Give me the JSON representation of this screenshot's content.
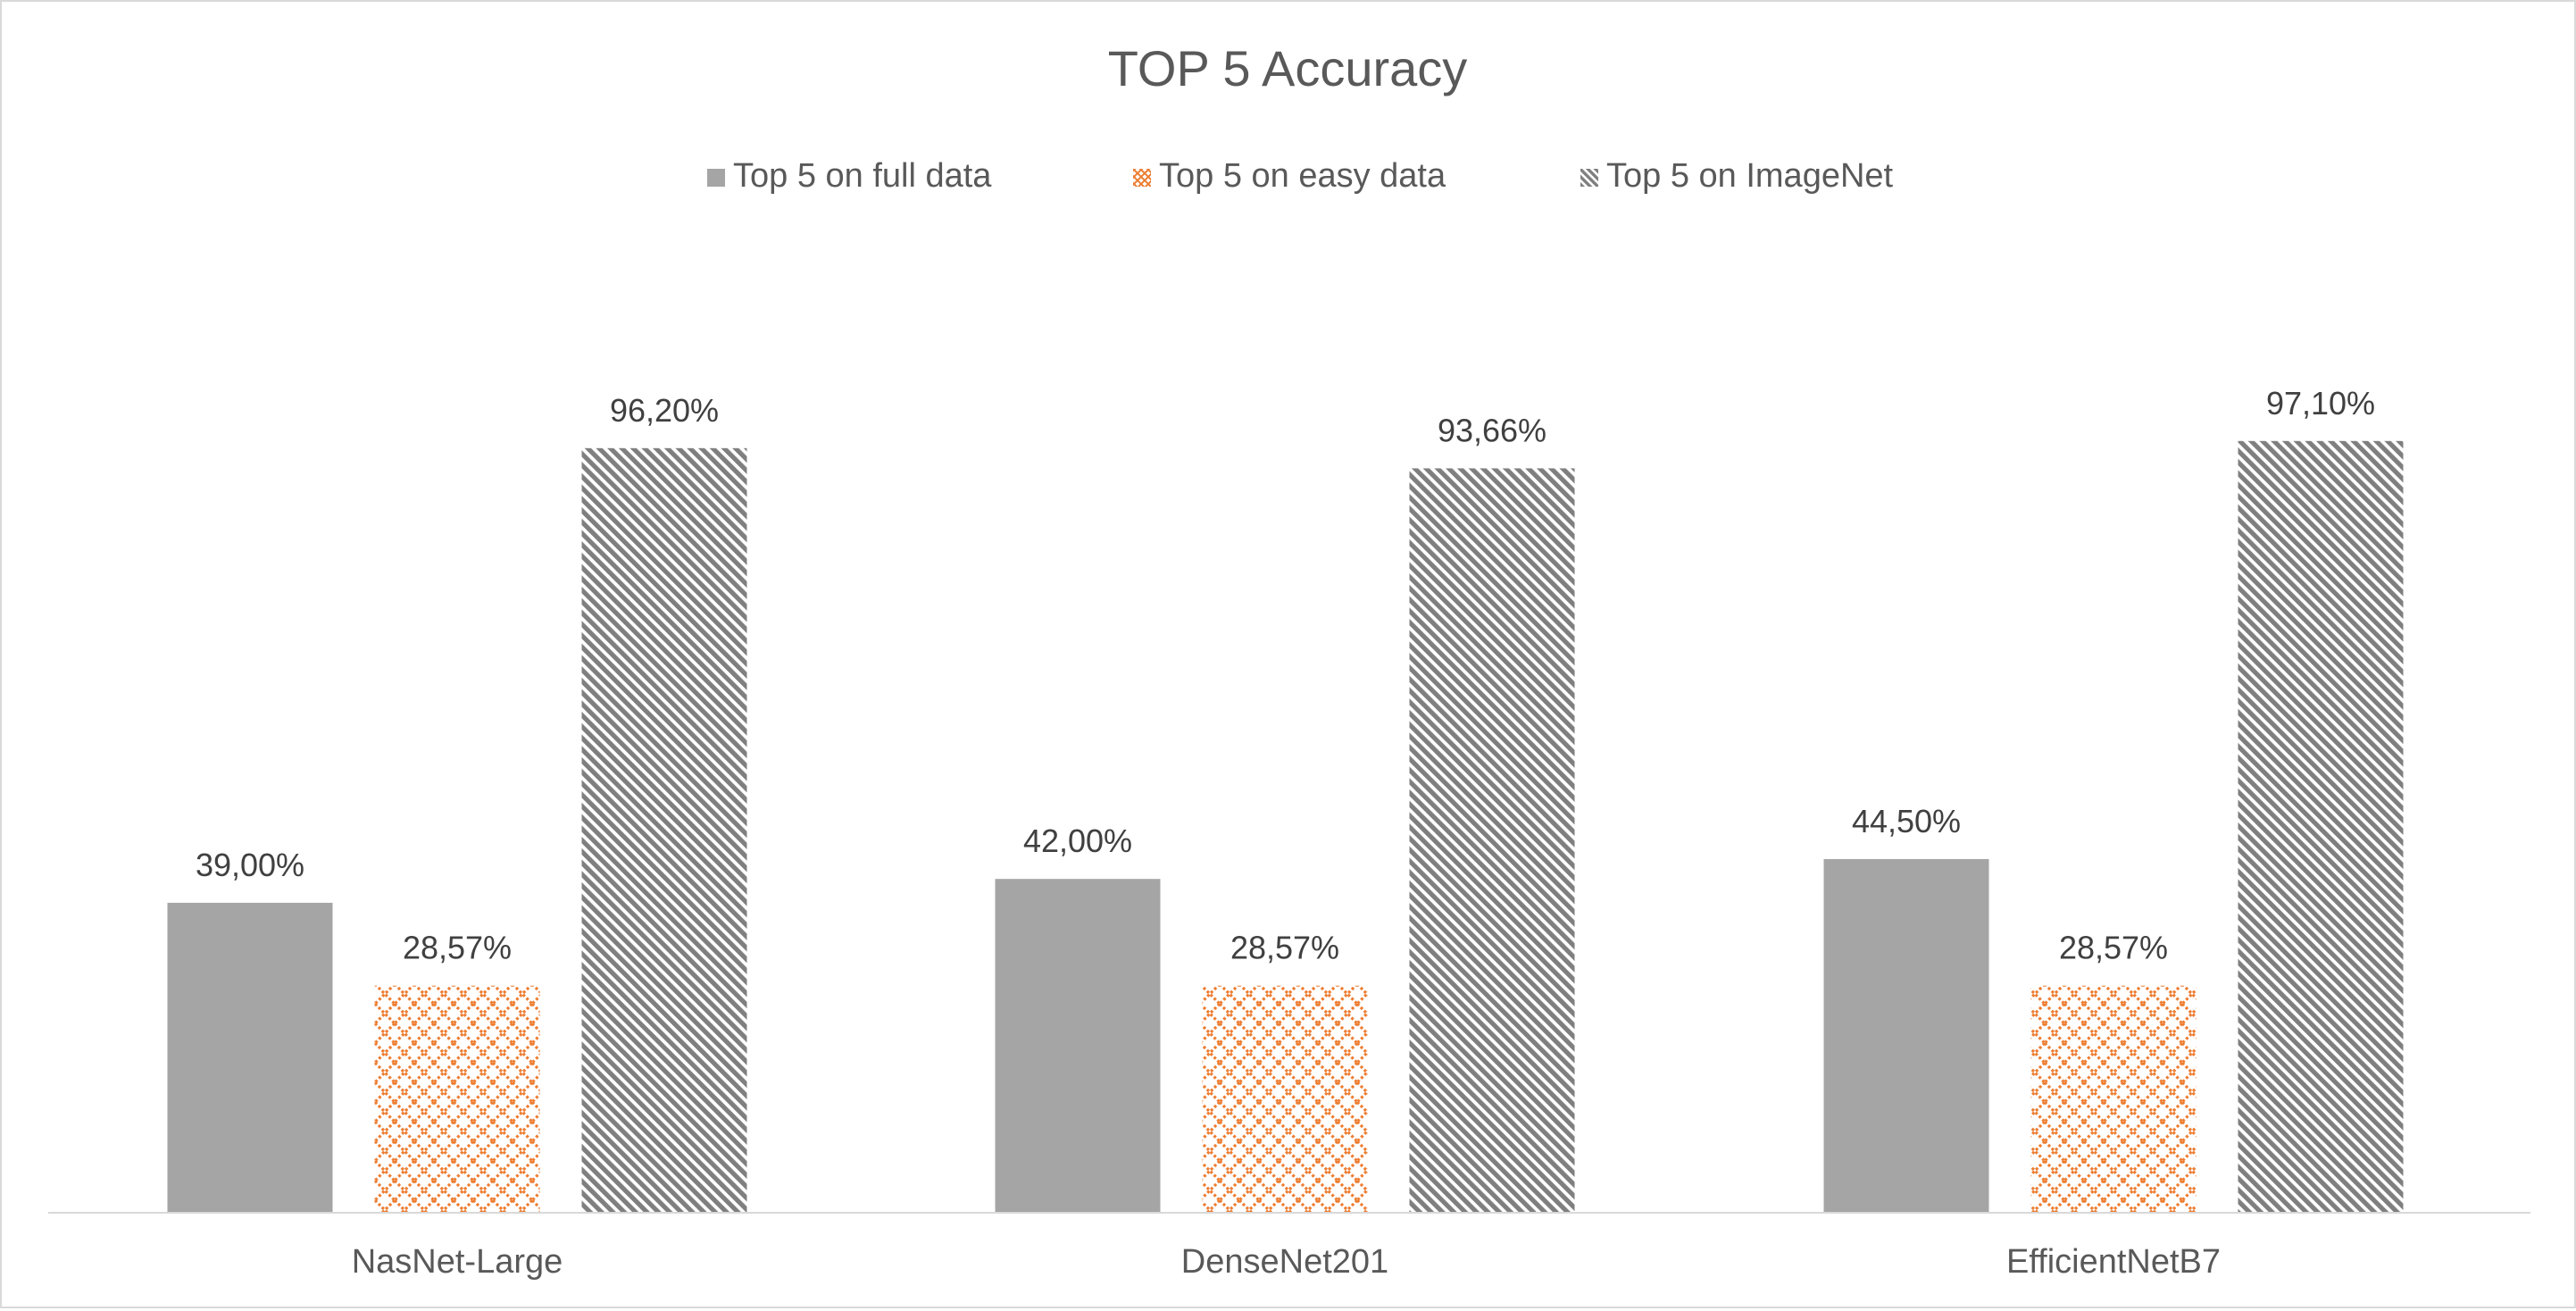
{
  "chart_data": {
    "type": "bar",
    "title": "TOP 5 Accuracy",
    "xlabel": "",
    "ylabel": "",
    "categories": [
      "NasNet-Large",
      "DenseNet201",
      "EfficientNetB7"
    ],
    "series": [
      {
        "name": "Top 5 on full data",
        "values": [
          39.0,
          42.0,
          44.5
        ],
        "labels": [
          "39,00%",
          "42,00%",
          "44,50%"
        ],
        "color": "#a5a5a5",
        "pattern": "solid"
      },
      {
        "name": "Top 5 on easy data",
        "values": [
          28.57,
          28.57,
          28.57
        ],
        "labels": [
          "28,57%",
          "28,57%",
          "28,57%"
        ],
        "color": "#ed7d31",
        "pattern": "crosshatch"
      },
      {
        "name": "Top 5 on ImageNet",
        "values": [
          96.2,
          93.66,
          97.1
        ],
        "labels": [
          "96,20%",
          "93,66%",
          "97,10%"
        ],
        "color": "#7f7f7f",
        "pattern": "diagonal"
      }
    ],
    "ylim": [
      0,
      100
    ],
    "grid": false,
    "legend_position": "top"
  }
}
